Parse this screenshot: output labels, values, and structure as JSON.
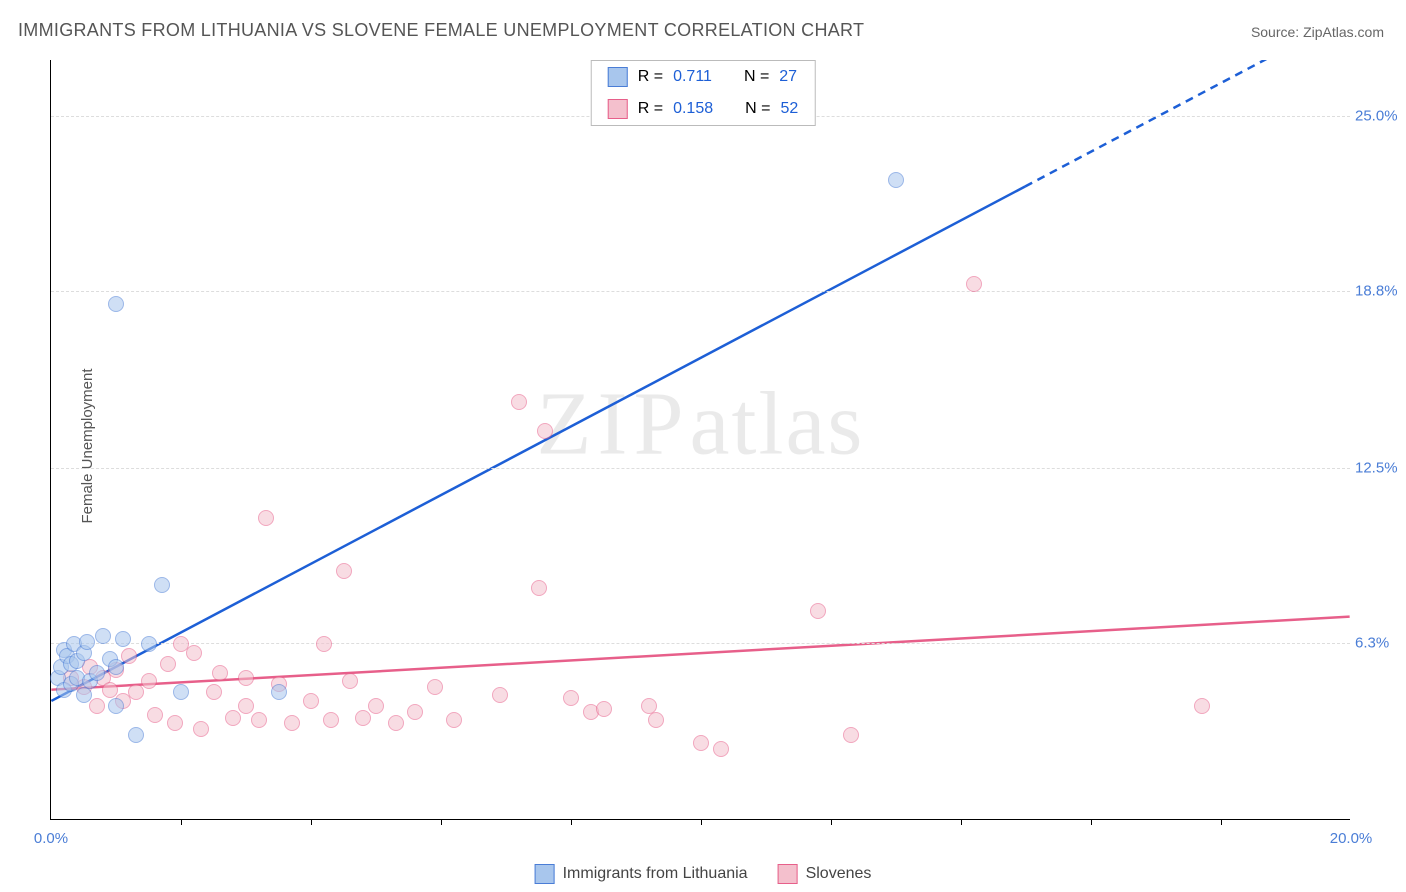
{
  "title": "IMMIGRANTS FROM LITHUANIA VS SLOVENE FEMALE UNEMPLOYMENT CORRELATION CHART",
  "source_label": "Source:",
  "source_name": "ZipAtlas.com",
  "ylabel": "Female Unemployment",
  "watermark_a": "ZIP",
  "watermark_b": "atlas",
  "chart": {
    "type": "scatter",
    "xlim": [
      0,
      20
    ],
    "ylim": [
      0,
      27
    ],
    "x_ticks": [
      0,
      20
    ],
    "x_tick_labels": [
      "0.0%",
      "20.0%"
    ],
    "x_minor_ticks": [
      2,
      4,
      6,
      8,
      10,
      12,
      14,
      16,
      18
    ],
    "y_ticks": [
      6.3,
      12.5,
      18.8,
      25.0
    ],
    "y_tick_labels": [
      "6.3%",
      "12.5%",
      "18.8%",
      "25.0%"
    ],
    "tick_color": "#4a7dd6",
    "grid_color": "#dddddd",
    "background": "#ffffff",
    "axis_color": "#000000",
    "marker_radius": 8,
    "marker_opacity": 0.55,
    "series": [
      {
        "name": "Immigrants from Lithuania",
        "color_fill": "#a8c6ed",
        "color_stroke": "#4a7dd6",
        "R_label": "R  =",
        "R": "0.711",
        "N_label": "N  =",
        "N": "27",
        "trend": {
          "x1": 0,
          "y1": 4.2,
          "x2": 15.0,
          "y2": 22.5,
          "dash_after_x": 15.0,
          "dash_x2": 20.0,
          "dash_y2": 28.6,
          "color": "#1d5fd6",
          "width": 2.5
        },
        "points": [
          [
            0.1,
            5.0
          ],
          [
            0.15,
            5.4
          ],
          [
            0.2,
            6.0
          ],
          [
            0.2,
            4.6
          ],
          [
            0.25,
            5.8
          ],
          [
            0.3,
            4.8
          ],
          [
            0.3,
            5.5
          ],
          [
            0.35,
            6.2
          ],
          [
            0.4,
            5.0
          ],
          [
            0.4,
            5.6
          ],
          [
            0.5,
            4.4
          ],
          [
            0.5,
            5.9
          ],
          [
            0.55,
            6.3
          ],
          [
            0.6,
            4.9
          ],
          [
            0.7,
            5.2
          ],
          [
            0.8,
            6.5
          ],
          [
            0.9,
            5.7
          ],
          [
            1.0,
            4.0
          ],
          [
            1.0,
            5.4
          ],
          [
            1.1,
            6.4
          ],
          [
            1.3,
            3.0
          ],
          [
            1.5,
            6.2
          ],
          [
            1.7,
            8.3
          ],
          [
            2.0,
            4.5
          ],
          [
            3.5,
            4.5
          ],
          [
            1.0,
            18.3
          ],
          [
            13.0,
            22.7
          ]
        ]
      },
      {
        "name": "Slovenes",
        "color_fill": "#f4c0cd",
        "color_stroke": "#e75f8a",
        "R_label": "R  =",
        "R": "0.158",
        "N_label": "N  =",
        "N": "52",
        "trend": {
          "x1": 0,
          "y1": 4.6,
          "x2": 20,
          "y2": 7.2,
          "color": "#e75f8a",
          "width": 2.5
        },
        "points": [
          [
            0.3,
            5.0
          ],
          [
            0.5,
            4.7
          ],
          [
            0.6,
            5.4
          ],
          [
            0.7,
            4.0
          ],
          [
            0.8,
            5.0
          ],
          [
            0.9,
            4.6
          ],
          [
            1.0,
            5.3
          ],
          [
            1.1,
            4.2
          ],
          [
            1.2,
            5.8
          ],
          [
            1.3,
            4.5
          ],
          [
            1.5,
            4.9
          ],
          [
            1.6,
            3.7
          ],
          [
            1.8,
            5.5
          ],
          [
            1.9,
            3.4
          ],
          [
            2.0,
            6.2
          ],
          [
            2.2,
            5.9
          ],
          [
            2.3,
            3.2
          ],
          [
            2.5,
            4.5
          ],
          [
            2.6,
            5.2
          ],
          [
            2.8,
            3.6
          ],
          [
            3.0,
            4.0
          ],
          [
            3.2,
            3.5
          ],
          [
            3.3,
            10.7
          ],
          [
            3.5,
            4.8
          ],
          [
            3.7,
            3.4
          ],
          [
            4.0,
            4.2
          ],
          [
            4.2,
            6.2
          ],
          [
            4.3,
            3.5
          ],
          [
            4.5,
            8.8
          ],
          [
            4.8,
            3.6
          ],
          [
            5.0,
            4.0
          ],
          [
            5.3,
            3.4
          ],
          [
            5.6,
            3.8
          ],
          [
            5.9,
            4.7
          ],
          [
            6.2,
            3.5
          ],
          [
            6.9,
            4.4
          ],
          [
            7.5,
            8.2
          ],
          [
            7.6,
            13.8
          ],
          [
            8.0,
            4.3
          ],
          [
            8.3,
            3.8
          ],
          [
            8.5,
            3.9
          ],
          [
            9.2,
            4.0
          ],
          [
            9.3,
            3.5
          ],
          [
            10.0,
            2.7
          ],
          [
            10.3,
            2.5
          ],
          [
            11.8,
            7.4
          ],
          [
            12.3,
            3.0
          ],
          [
            7.2,
            14.8
          ],
          [
            14.2,
            19.0
          ],
          [
            17.7,
            4.0
          ],
          [
            3.0,
            5.0
          ],
          [
            4.6,
            4.9
          ]
        ]
      }
    ]
  }
}
